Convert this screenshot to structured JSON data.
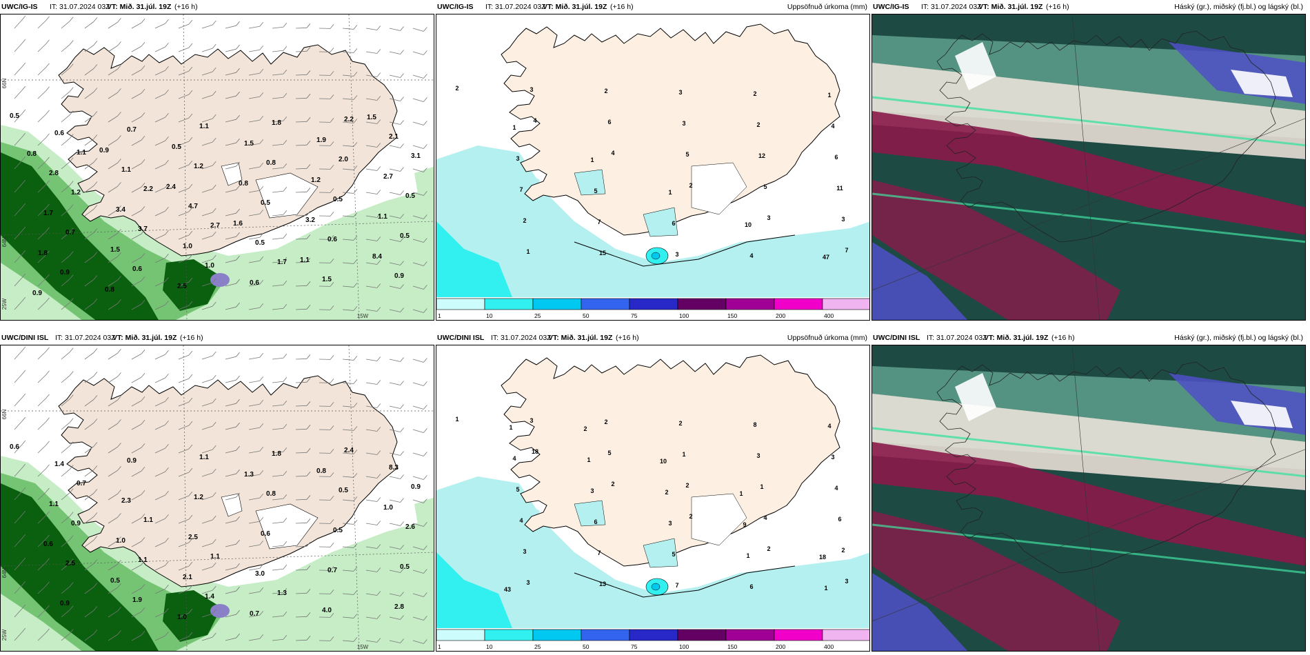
{
  "rows": [
    {
      "model": "UWC/IG-IS",
      "it_prefix": "IT:",
      "it_value": "31.07.2024 03Z",
      "vt_prefix": "VT:",
      "vt_value": "Mið. 31.júl. 19Z",
      "lead": "(+16 h)",
      "wind_labels": [
        "0.5",
        "1.1",
        "2.2",
        "2.7",
        "1.7",
        "2.2",
        "3.1",
        "1.2",
        "3.7",
        "1.0",
        "1.8",
        "2.0",
        "0.5",
        "0.7",
        "0.6",
        "1.1",
        "0.8",
        "0.5",
        "0.5",
        "0.9",
        "0.7",
        "1.2",
        "0.5",
        "0.6",
        "0.9",
        "0.6",
        "1.1",
        "4.7",
        "0.5",
        "1.5",
        "2.1",
        "2.8",
        "3.4",
        "1.0",
        "0.6",
        "1.9",
        "2.7",
        "1.7",
        "1.5",
        "2.5",
        "1.5",
        "1.2",
        "1.1",
        "1.8",
        "0.8",
        "0.5",
        "0.8",
        "3.2",
        "8.4",
        "0.9",
        "0.9",
        "2.4",
        "1.6",
        "1.1",
        "1.5",
        "0.8"
      ],
      "rain_labels": [
        "2",
        "4",
        "4",
        "2",
        "3",
        "7",
        "3",
        "6",
        "5",
        "5",
        "3",
        "1",
        "2",
        "3",
        "12",
        "11",
        "2",
        "15",
        "3",
        "2",
        "6",
        "7",
        "7",
        "3",
        "2",
        "4",
        "3",
        "5",
        "6",
        "4",
        "1",
        "1",
        "1",
        "1",
        "10",
        "47"
      ],
      "axis": {
        "lat_top": "66N",
        "lat_mid": "64N",
        "lon_left": "25W",
        "lon_bottom": "15W"
      }
    },
    {
      "model": "UWC/DINI ISL",
      "it_prefix": "IT:",
      "it_value": "31.07.2024 03Z",
      "vt_prefix": "VT:",
      "vt_value": "Mið. 31.júl. 19Z",
      "lead": "(+16 h)",
      "wind_labels": [
        "0.6",
        "0.7",
        "1.1",
        "1.1",
        "1.3",
        "2.4",
        "0.9",
        "0.9",
        "1.1",
        "1.4",
        "1.8",
        "0.5",
        "2.6",
        "2.5",
        "1.9",
        "1.1",
        "0.8",
        "0.5",
        "0.5",
        "0.9",
        "0.9",
        "1.2",
        "0.6",
        "0.7",
        "2.8",
        "1.4",
        "2.3",
        "2.5",
        "3.0",
        "4.0",
        "8.3",
        "1.1",
        "1.0",
        "2.1",
        "0.7",
        "0.8",
        "1.0",
        "0.6",
        "0.5",
        "1.0",
        "1.3"
      ],
      "rain_labels": [
        "1",
        "18",
        "2",
        "2",
        "2",
        "3",
        "3",
        "5",
        "2",
        "4",
        "2",
        "3",
        "2",
        "1",
        "1",
        "6",
        "3",
        "13",
        "2",
        "3",
        "4",
        "4",
        "7",
        "7",
        "8",
        "3",
        "5",
        "6",
        "5",
        "6",
        "4",
        "4",
        "3",
        "3",
        "1",
        "1",
        "1",
        "1",
        "2",
        "9",
        "18",
        "43",
        "2",
        "10",
        "1"
      ],
      "axis": {
        "lat_top": "66N",
        "lat_mid": "64N",
        "lon_left": "25W",
        "lon_bottom": "15W"
      }
    }
  ],
  "precip_title": "Uppsöfnuð úrkoma (mm)",
  "cloud_title": "Háský (gr.), miðský (fj.bl.) og lágský (bl.)",
  "colorbar": {
    "ticks": [
      "1",
      "10",
      "25",
      "50",
      "75",
      "100",
      "150",
      "200",
      "400"
    ],
    "colors": [
      "#ccfcfc",
      "#33f0f0",
      "#00c8f0",
      "#3264f0",
      "#2828c8",
      "#640064",
      "#a00096",
      "#f000c8",
      "#f0b4f0"
    ]
  },
  "colors": {
    "land": "#f2e4d8",
    "land_precip": "#fdf0e3",
    "rain_light": "#b4f0f0",
    "green_light": "#c6edc6",
    "green_mid": "#74c474",
    "green_dark": "#0b6010",
    "cloud_high": "#5a9a8a",
    "cloud_mid": "#8a1a4a",
    "cloud_low": "#5050c8"
  }
}
